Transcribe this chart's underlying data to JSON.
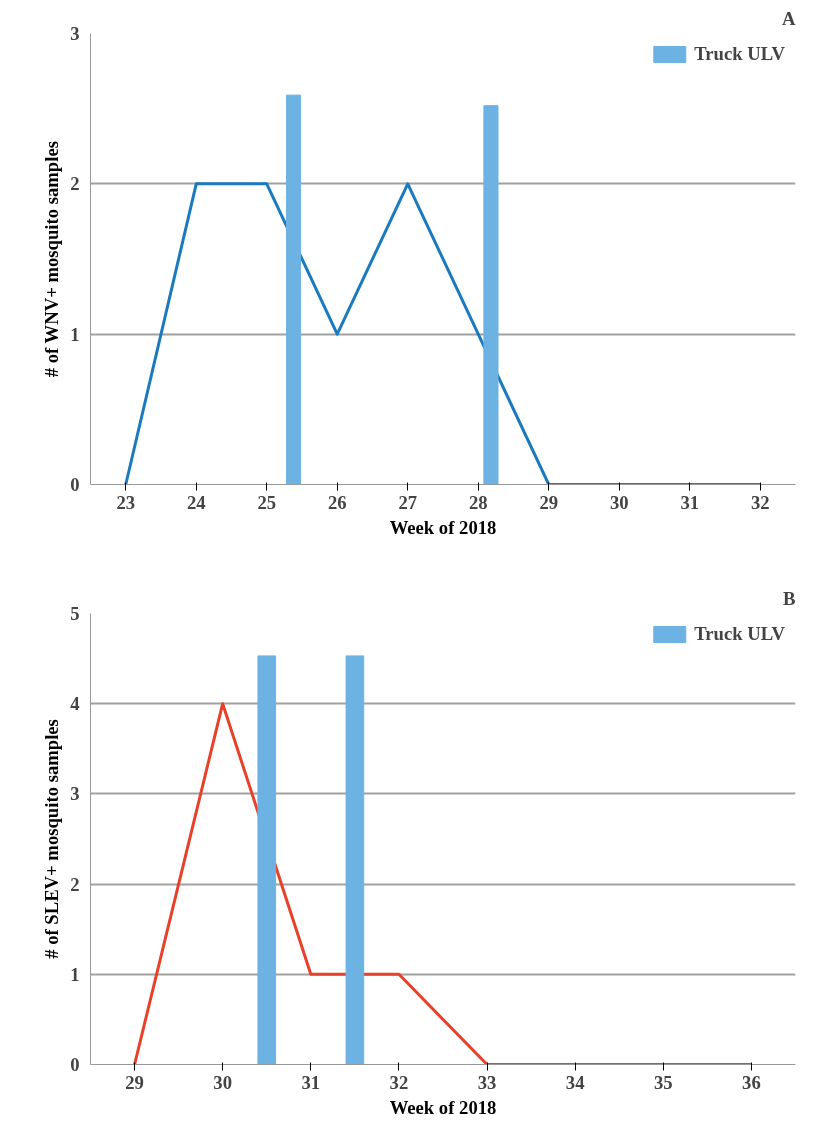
{
  "chart_data": [
    {
      "type": "line",
      "title": "A",
      "xlabel": "Week of 2018",
      "ylabel": "# of WNV+ mosquito samples",
      "x": [
        23,
        24,
        25,
        26,
        27,
        28,
        29,
        30,
        31,
        32
      ],
      "xlim": [
        22.5,
        32.5
      ],
      "xticks": [
        23,
        24,
        25,
        26,
        27,
        28,
        29,
        30,
        31,
        32
      ],
      "ylim": [
        0,
        3
      ],
      "yticks": [
        0,
        1,
        2,
        3
      ],
      "grid": "y",
      "legend": "top right",
      "series": [
        {
          "color": "#1a7abf",
          "values": [
            0,
            2,
            2,
            1,
            2,
            1,
            0,
            0,
            0,
            0
          ]
        },
        {
          "type": "bar",
          "name": "Truck ULV",
          "color": "#6cb2e2",
          "x": [
            25.38,
            28.18
          ],
          "values": [
            2.59,
            2.52
          ]
        }
      ]
    },
    {
      "type": "line",
      "title": "B",
      "xlabel": "Week of 2018",
      "ylabel": "# of SLEV+ mosquito samples",
      "x": [
        29,
        30,
        31,
        32,
        33,
        34,
        35,
        36
      ],
      "xlim": [
        28.5,
        36.5
      ],
      "xticks": [
        29,
        30,
        31,
        32,
        33,
        34,
        35,
        36
      ],
      "ylim": [
        0,
        5
      ],
      "yticks": [
        0,
        1,
        2,
        3,
        4,
        5
      ],
      "grid": "y",
      "legend": "top right",
      "series": [
        {
          "color": "#e8412a",
          "values": [
            0,
            4,
            1,
            1,
            0,
            0,
            0,
            0
          ]
        },
        {
          "type": "bar",
          "name": "Truck ULV",
          "color": "#6cb2e2",
          "x": [
            30.5,
            31.5
          ],
          "values": [
            4.53,
            4.53
          ]
        }
      ]
    }
  ]
}
